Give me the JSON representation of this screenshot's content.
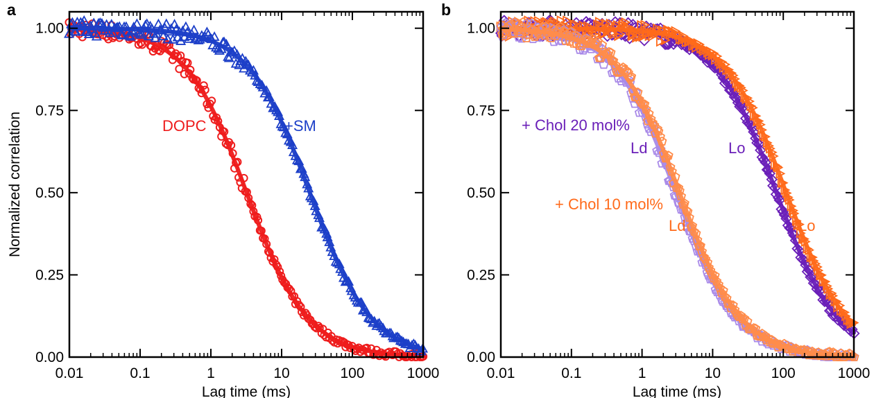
{
  "chart_data": [
    {
      "panel_label": "a",
      "type": "scatter",
      "x_scale": "log",
      "xlim": [
        0.01,
        1000
      ],
      "ylim": [
        0,
        1.05
      ],
      "xlabel": "Lag time (ms)",
      "ylabel": "Normalized correlation",
      "x_tick_labels": [
        "0.01",
        "0.1",
        "1",
        "10",
        "100",
        "1000"
      ],
      "y_tick_labels": [
        "0.00",
        "0.25",
        "0.50",
        "0.75",
        "1.00"
      ],
      "series": [
        {
          "name": "DOPC",
          "color": "#ee1c1c",
          "marker": "circle",
          "fit": "fcs-2d",
          "tau_d_ms": 3.2
        },
        {
          "name": "+SM",
          "color": "#1c3fc8",
          "marker": "triangle",
          "fit": "fcs-2d",
          "tau_d_ms": 25
        }
      ],
      "annotations": [
        {
          "text": "DOPC",
          "color": "#ee1c1c"
        },
        {
          "text": "+SM",
          "color": "#1c3fc8"
        }
      ]
    },
    {
      "panel_label": "b",
      "type": "scatter",
      "x_scale": "log",
      "xlim": [
        0.01,
        1000
      ],
      "ylim": [
        0,
        1.05
      ],
      "xlabel": "Lag time (ms)",
      "ylabel": "",
      "x_tick_labels": [
        "0.01",
        "0.1",
        "1",
        "10",
        "100",
        "1000"
      ],
      "y_tick_labels": [
        "0.00",
        "0.25",
        "0.50",
        "0.75",
        "1.00"
      ],
      "series": [
        {
          "name": "+ Chol 20 mol% Lo",
          "color": "#6a1fb8",
          "marker": "diamond",
          "fit": "fcs-2d",
          "tau_d_ms": 80,
          "fit_color": "#6a1fb8"
        },
        {
          "name": "+ Chol 10 mol% Lo",
          "color": "#ff6a1a",
          "marker": "triangle-right",
          "fit": "fcs-2d",
          "tau_d_ms": 110,
          "fit_color": "#ff6a1a"
        },
        {
          "name": "+ Chol 20 mol% Ld",
          "color": "#a98ae8",
          "marker": "pentagon",
          "fit": "fcs-2d",
          "tau_d_ms": 3.0,
          "fit_color": "#a98ae8"
        },
        {
          "name": "+ Chol 10 mol% Ld",
          "color": "#ff8c4a",
          "marker": "pentagon",
          "fit": "fcs-2d",
          "tau_d_ms": 3.4,
          "fit_color": "#ff8c4a"
        }
      ],
      "annotations": [
        {
          "text": "+ Chol 20 mol%",
          "color": "#6a1fb8"
        },
        {
          "text": "Ld",
          "color": "#6a1fb8"
        },
        {
          "text": "Lo",
          "color": "#6a1fb8"
        },
        {
          "text": "+ Chol 10 mol%",
          "color": "#ff6a1a"
        },
        {
          "text": "Ld",
          "color": "#ff6a1a"
        },
        {
          "text": "Lo",
          "color": "#ff6a1a"
        }
      ]
    }
  ]
}
